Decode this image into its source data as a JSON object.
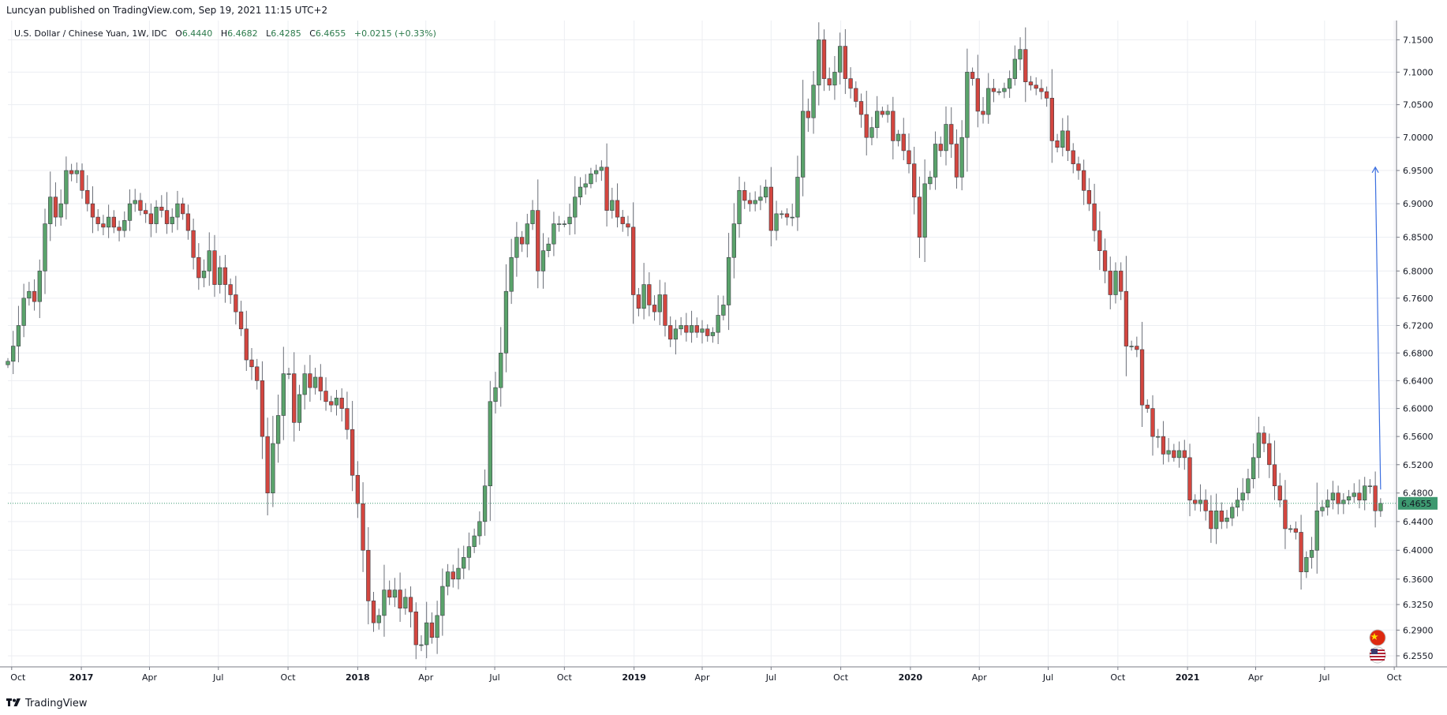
{
  "header": {
    "published": "Luncyan published on TradingView.com, Sep 19, 2021 11:15 UTC+2"
  },
  "legend": {
    "symbol": "U.S. Dollar / Chinese Yuan, 1W, IDC",
    "open_label": "O",
    "open": "6.4440",
    "high_label": "H",
    "high": "6.4682",
    "low_label": "L",
    "low": "6.4285",
    "close_label": "C",
    "close": "6.4655",
    "change": "+0.0215 (+0.33%)"
  },
  "footer": {
    "brand": "TradingView"
  },
  "colors": {
    "up": "#5aa36b",
    "down": "#d3463f",
    "grid": "#eceef2",
    "last_price": "#3d9970",
    "arrow": "#3b6fe0",
    "text": "#131722"
  },
  "icons": [
    "tradingview-logo-icon",
    "china-flag-icon",
    "usa-flag-icon"
  ],
  "chart_data": {
    "type": "candlestick",
    "title": "U.S. Dollar / Chinese Yuan, 1W, IDC",
    "interval": "1W",
    "y_ticks": [
      "7.1500",
      "7.1000",
      "7.0500",
      "7.0000",
      "6.9500",
      "6.9000",
      "6.8500",
      "6.8000",
      "6.7600",
      "6.7200",
      "6.6800",
      "6.6400",
      "6.6000",
      "6.5600",
      "6.5200",
      "6.4800",
      "6.4400",
      "6.4000",
      "6.3600",
      "6.3250",
      "6.2900",
      "6.2550"
    ],
    "y_scale": "log",
    "ylim": [
      6.24,
      7.18
    ],
    "x_range": [
      "2016-09-26",
      "2021-10-04"
    ],
    "x_ticks": [
      {
        "label": "Oct",
        "date": "2016-10-01"
      },
      {
        "label": "2017",
        "date": "2017-01-01",
        "year": true
      },
      {
        "label": "Apr",
        "date": "2017-04-01"
      },
      {
        "label": "Jul",
        "date": "2017-07-01"
      },
      {
        "label": "Oct",
        "date": "2017-10-01"
      },
      {
        "label": "2018",
        "date": "2018-01-01",
        "year": true
      },
      {
        "label": "Apr",
        "date": "2018-04-01"
      },
      {
        "label": "Jul",
        "date": "2018-07-01"
      },
      {
        "label": "Oct",
        "date": "2018-10-01"
      },
      {
        "label": "2019",
        "date": "2019-01-01",
        "year": true
      },
      {
        "label": "Apr",
        "date": "2019-04-01"
      },
      {
        "label": "Jul",
        "date": "2019-07-01"
      },
      {
        "label": "Oct",
        "date": "2019-10-01"
      },
      {
        "label": "2020",
        "date": "2020-01-01",
        "year": true
      },
      {
        "label": "Apr",
        "date": "2020-04-01"
      },
      {
        "label": "Jul",
        "date": "2020-07-01"
      },
      {
        "label": "Oct",
        "date": "2020-10-01"
      },
      {
        "label": "2021",
        "date": "2021-01-01",
        "year": true
      },
      {
        "label": "Apr",
        "date": "2021-04-01"
      },
      {
        "label": "Jul",
        "date": "2021-07-01"
      },
      {
        "label": "Oct",
        "date": "2021-10-01"
      }
    ],
    "last_price": 6.4655,
    "last_price_label": "6.4655",
    "grid": true,
    "annotation": {
      "type": "arrow",
      "from": {
        "date": "2021-09-13",
        "value": 6.485
      },
      "to": {
        "date": "2021-09-06",
        "value": 6.955
      }
    },
    "closes": [
      [
        "2016-09-26",
        6.668
      ],
      [
        "2016-10-03",
        6.69
      ],
      [
        "2016-10-10",
        6.72
      ],
      [
        "2016-10-17",
        6.76
      ],
      [
        "2016-10-24",
        6.77
      ],
      [
        "2016-10-31",
        6.755
      ],
      [
        "2016-11-07",
        6.8
      ],
      [
        "2016-11-14",
        6.87
      ],
      [
        "2016-11-21",
        6.91
      ],
      [
        "2016-11-28",
        6.88
      ],
      [
        "2016-12-05",
        6.9
      ],
      [
        "2016-12-12",
        6.95
      ],
      [
        "2016-12-19",
        6.945
      ],
      [
        "2016-12-26",
        6.95
      ],
      [
        "2017-01-02",
        6.92
      ],
      [
        "2017-01-09",
        6.9
      ],
      [
        "2017-01-16",
        6.88
      ],
      [
        "2017-01-23",
        6.87
      ],
      [
        "2017-01-30",
        6.865
      ],
      [
        "2017-02-06",
        6.88
      ],
      [
        "2017-02-13",
        6.865
      ],
      [
        "2017-02-20",
        6.86
      ],
      [
        "2017-02-27",
        6.875
      ],
      [
        "2017-03-06",
        6.9
      ],
      [
        "2017-03-13",
        6.905
      ],
      [
        "2017-03-20",
        6.89
      ],
      [
        "2017-03-27",
        6.885
      ],
      [
        "2017-04-03",
        6.87
      ],
      [
        "2017-04-10",
        6.895
      ],
      [
        "2017-04-17",
        6.89
      ],
      [
        "2017-04-24",
        6.87
      ],
      [
        "2017-05-01",
        6.88
      ],
      [
        "2017-05-08",
        6.9
      ],
      [
        "2017-05-15",
        6.885
      ],
      [
        "2017-05-22",
        6.86
      ],
      [
        "2017-05-29",
        6.82
      ],
      [
        "2017-06-05",
        6.79
      ],
      [
        "2017-06-12",
        6.8
      ],
      [
        "2017-06-19",
        6.83
      ],
      [
        "2017-06-26",
        6.78
      ],
      [
        "2017-07-03",
        6.805
      ],
      [
        "2017-07-10",
        6.78
      ],
      [
        "2017-07-17",
        6.765
      ],
      [
        "2017-07-24",
        6.74
      ],
      [
        "2017-07-31",
        6.715
      ],
      [
        "2017-08-07",
        6.67
      ],
      [
        "2017-08-14",
        6.66
      ],
      [
        "2017-08-21",
        6.64
      ],
      [
        "2017-08-28",
        6.56
      ],
      [
        "2017-09-04",
        6.48
      ],
      [
        "2017-09-11",
        6.55
      ],
      [
        "2017-09-18",
        6.59
      ],
      [
        "2017-09-25",
        6.65
      ],
      [
        "2017-10-02",
        6.65
      ],
      [
        "2017-10-09",
        6.58
      ],
      [
        "2017-10-16",
        6.62
      ],
      [
        "2017-10-23",
        6.65
      ],
      [
        "2017-10-30",
        6.63
      ],
      [
        "2017-11-06",
        6.645
      ],
      [
        "2017-11-13",
        6.625
      ],
      [
        "2017-11-20",
        6.61
      ],
      [
        "2017-11-27",
        6.605
      ],
      [
        "2017-12-04",
        6.615
      ],
      [
        "2017-12-11",
        6.6
      ],
      [
        "2017-12-18",
        6.57
      ],
      [
        "2017-12-25",
        6.505
      ],
      [
        "2018-01-01",
        6.465
      ],
      [
        "2018-01-08",
        6.4
      ],
      [
        "2018-01-15",
        6.33
      ],
      [
        "2018-01-22",
        6.3
      ],
      [
        "2018-01-29",
        6.31
      ],
      [
        "2018-02-05",
        6.345
      ],
      [
        "2018-02-12",
        6.335
      ],
      [
        "2018-02-19",
        6.345
      ],
      [
        "2018-02-26",
        6.32
      ],
      [
        "2018-03-05",
        6.335
      ],
      [
        "2018-03-12",
        6.315
      ],
      [
        "2018-03-19",
        6.27
      ],
      [
        "2018-03-26",
        6.27
      ],
      [
        "2018-04-02",
        6.3
      ],
      [
        "2018-04-09",
        6.28
      ],
      [
        "2018-04-16",
        6.31
      ],
      [
        "2018-04-23",
        6.35
      ],
      [
        "2018-04-30",
        6.37
      ],
      [
        "2018-05-07",
        6.36
      ],
      [
        "2018-05-14",
        6.375
      ],
      [
        "2018-05-21",
        6.39
      ],
      [
        "2018-05-28",
        6.405
      ],
      [
        "2018-06-04",
        6.42
      ],
      [
        "2018-06-11",
        6.44
      ],
      [
        "2018-06-18",
        6.49
      ],
      [
        "2018-06-25",
        6.61
      ],
      [
        "2018-07-02",
        6.63
      ],
      [
        "2018-07-09",
        6.68
      ],
      [
        "2018-07-16",
        6.77
      ],
      [
        "2018-07-23",
        6.82
      ],
      [
        "2018-07-30",
        6.85
      ],
      [
        "2018-08-06",
        6.84
      ],
      [
        "2018-08-13",
        6.87
      ],
      [
        "2018-08-20",
        6.89
      ],
      [
        "2018-08-27",
        6.8
      ],
      [
        "2018-09-03",
        6.83
      ],
      [
        "2018-09-10",
        6.84
      ],
      [
        "2018-09-17",
        6.87
      ],
      [
        "2018-09-24",
        6.87
      ],
      [
        "2018-10-01",
        6.87
      ],
      [
        "2018-10-08",
        6.88
      ],
      [
        "2018-10-15",
        6.91
      ],
      [
        "2018-10-22",
        6.925
      ],
      [
        "2018-10-29",
        6.93
      ],
      [
        "2018-11-05",
        6.945
      ],
      [
        "2018-11-12",
        6.95
      ],
      [
        "2018-11-19",
        6.955
      ],
      [
        "2018-11-26",
        6.89
      ],
      [
        "2018-12-03",
        6.905
      ],
      [
        "2018-12-10",
        6.88
      ],
      [
        "2018-12-17",
        6.87
      ],
      [
        "2018-12-24",
        6.865
      ],
      [
        "2018-12-31",
        6.765
      ],
      [
        "2019-01-07",
        6.745
      ],
      [
        "2019-01-14",
        6.78
      ],
      [
        "2019-01-21",
        6.75
      ],
      [
        "2019-01-28",
        6.74
      ],
      [
        "2019-02-04",
        6.765
      ],
      [
        "2019-02-11",
        6.72
      ],
      [
        "2019-02-18",
        6.7
      ],
      [
        "2019-02-25",
        6.715
      ],
      [
        "2019-03-04",
        6.72
      ],
      [
        "2019-03-11",
        6.71
      ],
      [
        "2019-03-18",
        6.72
      ],
      [
        "2019-03-25",
        6.71
      ],
      [
        "2019-04-01",
        6.715
      ],
      [
        "2019-04-08",
        6.705
      ],
      [
        "2019-04-15",
        6.71
      ],
      [
        "2019-04-22",
        6.735
      ],
      [
        "2019-04-29",
        6.75
      ],
      [
        "2019-05-06",
        6.82
      ],
      [
        "2019-05-13",
        6.87
      ],
      [
        "2019-05-20",
        6.92
      ],
      [
        "2019-05-27",
        6.905
      ],
      [
        "2019-06-03",
        6.9
      ],
      [
        "2019-06-10",
        6.905
      ],
      [
        "2019-06-17",
        6.91
      ],
      [
        "2019-06-24",
        6.925
      ],
      [
        "2019-07-01",
        6.86
      ],
      [
        "2019-07-08",
        6.885
      ],
      [
        "2019-07-15",
        6.885
      ],
      [
        "2019-07-22",
        6.88
      ],
      [
        "2019-07-29",
        6.88
      ],
      [
        "2019-08-05",
        6.94
      ],
      [
        "2019-08-12",
        7.04
      ],
      [
        "2019-08-19",
        7.03
      ],
      [
        "2019-08-26",
        7.08
      ],
      [
        "2019-09-02",
        7.15
      ],
      [
        "2019-09-09",
        7.09
      ],
      [
        "2019-09-16",
        7.08
      ],
      [
        "2019-09-23",
        7.1
      ],
      [
        "2019-09-30",
        7.14
      ],
      [
        "2019-10-07",
        7.09
      ],
      [
        "2019-10-14",
        7.075
      ],
      [
        "2019-10-21",
        7.055
      ],
      [
        "2019-10-28",
        7.035
      ],
      [
        "2019-11-04",
        7.0
      ],
      [
        "2019-11-11",
        7.015
      ],
      [
        "2019-11-18",
        7.04
      ],
      [
        "2019-11-25",
        7.035
      ],
      [
        "2019-12-02",
        7.04
      ],
      [
        "2019-12-09",
        6.995
      ],
      [
        "2019-12-16",
        7.005
      ],
      [
        "2019-12-23",
        6.98
      ],
      [
        "2019-12-30",
        6.96
      ],
      [
        "2020-01-06",
        6.91
      ],
      [
        "2020-01-13",
        6.85
      ],
      [
        "2020-01-20",
        6.93
      ],
      [
        "2020-01-27",
        6.94
      ],
      [
        "2020-02-03",
        6.99
      ],
      [
        "2020-02-10",
        6.98
      ],
      [
        "2020-02-17",
        7.02
      ],
      [
        "2020-02-24",
        6.99
      ],
      [
        "2020-03-02",
        6.94
      ],
      [
        "2020-03-09",
        7.0
      ],
      [
        "2020-03-16",
        7.1
      ],
      [
        "2020-03-23",
        7.09
      ],
      [
        "2020-03-30",
        7.04
      ],
      [
        "2020-04-06",
        7.035
      ],
      [
        "2020-04-13",
        7.075
      ],
      [
        "2020-04-20",
        7.07
      ],
      [
        "2020-04-27",
        7.07
      ],
      [
        "2020-05-04",
        7.075
      ],
      [
        "2020-05-11",
        7.09
      ],
      [
        "2020-05-18",
        7.12
      ],
      [
        "2020-05-25",
        7.135
      ],
      [
        "2020-06-01",
        7.085
      ],
      [
        "2020-06-08",
        7.08
      ],
      [
        "2020-06-15",
        7.075
      ],
      [
        "2020-06-22",
        7.07
      ],
      [
        "2020-06-29",
        7.06
      ],
      [
        "2020-07-06",
        6.995
      ],
      [
        "2020-07-13",
        6.985
      ],
      [
        "2020-07-20",
        7.01
      ],
      [
        "2020-07-27",
        6.98
      ],
      [
        "2020-08-03",
        6.96
      ],
      [
        "2020-08-10",
        6.95
      ],
      [
        "2020-08-17",
        6.92
      ],
      [
        "2020-08-24",
        6.9
      ],
      [
        "2020-08-31",
        6.86
      ],
      [
        "2020-09-07",
        6.83
      ],
      [
        "2020-09-14",
        6.8
      ],
      [
        "2020-09-21",
        6.765
      ],
      [
        "2020-09-28",
        6.8
      ],
      [
        "2020-10-05",
        6.77
      ],
      [
        "2020-10-12",
        6.69
      ],
      [
        "2020-10-19",
        6.69
      ],
      [
        "2020-10-26",
        6.685
      ],
      [
        "2020-11-02",
        6.605
      ],
      [
        "2020-11-09",
        6.6
      ],
      [
        "2020-11-16",
        6.56
      ],
      [
        "2020-11-23",
        6.56
      ],
      [
        "2020-11-30",
        6.535
      ],
      [
        "2020-12-07",
        6.54
      ],
      [
        "2020-12-14",
        6.53
      ],
      [
        "2020-12-21",
        6.54
      ],
      [
        "2020-12-28",
        6.53
      ],
      [
        "2021-01-04",
        6.47
      ],
      [
        "2021-01-11",
        6.465
      ],
      [
        "2021-01-18",
        6.47
      ],
      [
        "2021-01-25",
        6.455
      ],
      [
        "2021-02-01",
        6.43
      ],
      [
        "2021-02-08",
        6.455
      ],
      [
        "2021-02-15",
        6.44
      ],
      [
        "2021-02-22",
        6.445
      ],
      [
        "2021-03-01",
        6.46
      ],
      [
        "2021-03-08",
        6.47
      ],
      [
        "2021-03-15",
        6.48
      ],
      [
        "2021-03-22",
        6.5
      ],
      [
        "2021-03-29",
        6.53
      ],
      [
        "2021-04-05",
        6.565
      ],
      [
        "2021-04-12",
        6.55
      ],
      [
        "2021-04-19",
        6.52
      ],
      [
        "2021-04-26",
        6.49
      ],
      [
        "2021-05-03",
        6.47
      ],
      [
        "2021-05-10",
        6.43
      ],
      [
        "2021-05-17",
        6.43
      ],
      [
        "2021-05-24",
        6.425
      ],
      [
        "2021-05-31",
        6.37
      ],
      [
        "2021-06-07",
        6.39
      ],
      [
        "2021-06-14",
        6.4
      ],
      [
        "2021-06-21",
        6.455
      ],
      [
        "2021-06-28",
        6.46
      ],
      [
        "2021-07-05",
        6.47
      ],
      [
        "2021-07-12",
        6.48
      ],
      [
        "2021-07-19",
        6.465
      ],
      [
        "2021-07-26",
        6.47
      ],
      [
        "2021-08-02",
        6.475
      ],
      [
        "2021-08-09",
        6.48
      ],
      [
        "2021-08-16",
        6.47
      ],
      [
        "2021-08-23",
        6.49
      ],
      [
        "2021-08-30",
        6.49
      ],
      [
        "2021-09-06",
        6.455
      ],
      [
        "2021-09-13",
        6.4655
      ]
    ]
  }
}
